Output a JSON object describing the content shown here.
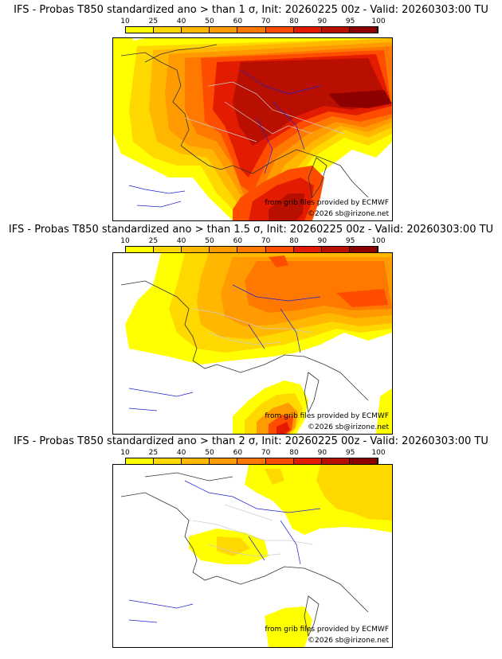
{
  "scale": {
    "labels": [
      "10",
      "25",
      "40",
      "50",
      "60",
      "70",
      "80",
      "90",
      "95",
      "100"
    ],
    "colors": [
      "#ffff00",
      "#ffd800",
      "#ffb700",
      "#ff9b00",
      "#ff7800",
      "#ff4d00",
      "#e31b00",
      "#b90f00",
      "#8c0000"
    ]
  },
  "panels": [
    {
      "title": "IFS - Probas T850  standardized ano > than 1 σ, Init: 20260225 00z - Valid: 20260303:00 TU",
      "credit1": "from grib files provided by ECMWF",
      "credit2": "©2026 sb@irizone.net"
    },
    {
      "title": "IFS - Probas T850  standardized ano > than 1.5 σ, Init: 20260225 00z - Valid: 20260303:00 TU",
      "credit1": "from grib files provided by ECMWF",
      "credit2": "©2026 sb@irizone.net"
    },
    {
      "title": "IFS - Probas T850  standardized ano > than 2 σ, Init: 20260225 00z - Valid: 20260303:00 TU",
      "credit1": "from grib files provided by ECMWF",
      "credit2": "©2026 sb@irizone.net"
    }
  ]
}
